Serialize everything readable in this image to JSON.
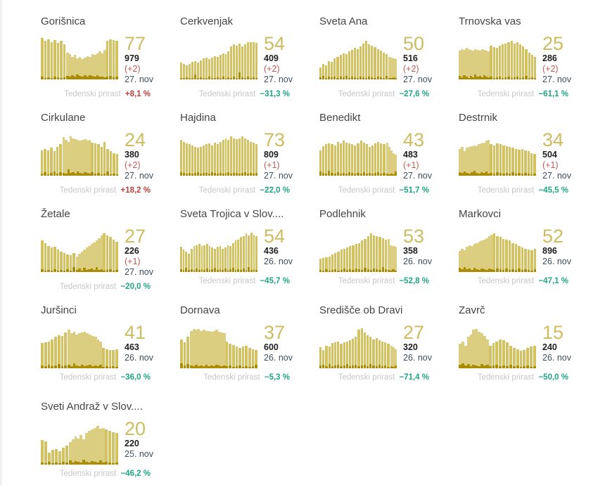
{
  "growth_label": "Tedenski prirast",
  "colors": {
    "bar": "#d3c262",
    "bar_light": "#dbce80",
    "bar_dark": "#ab8d03",
    "value": "#cebc62",
    "title": "#454545",
    "total": "#1e1e1e",
    "delta": "#bf5b51",
    "date": "#3f4e5c",
    "growth_label": "#c7c7c7",
    "growth_positive": "#b8403c",
    "growth_negative": "#20a584"
  },
  "chart_data": {
    "type": "bar",
    "description": "Grid of 17 municipality cards, each with a sparkline bar chart of daily active COVID-19 cases (light bars) and daily new confirmed cases (dark bottom segments). Headline number = current active cases; below it total confirmed, new cases today, data date, and weekly growth percentage.",
    "series": [
      {
        "name": "Gorišnica",
        "active": 77,
        "confirmed_total": 979,
        "new_cases": 2,
        "date": "27. nov",
        "weekly_growth_pct": 8.1
      },
      {
        "name": "Cerkvenjak",
        "active": 54,
        "confirmed_total": 409,
        "new_cases": 2,
        "date": "27. nov",
        "weekly_growth_pct": -31.3
      },
      {
        "name": "Sveta Ana",
        "active": 50,
        "confirmed_total": 516,
        "new_cases": 2,
        "date": "27. nov",
        "weekly_growth_pct": -27.6
      },
      {
        "name": "Trnovska vas",
        "active": 25,
        "confirmed_total": 286,
        "new_cases": 2,
        "date": "27. nov",
        "weekly_growth_pct": -61.1
      },
      {
        "name": "Cirkulane",
        "active": 24,
        "confirmed_total": 380,
        "new_cases": 2,
        "date": "27. nov",
        "weekly_growth_pct": 18.2
      },
      {
        "name": "Hajdina",
        "active": 73,
        "confirmed_total": 809,
        "new_cases": 1,
        "date": "27. nov",
        "weekly_growth_pct": -22.0
      },
      {
        "name": "Benedikt",
        "active": 43,
        "confirmed_total": 483,
        "new_cases": 1,
        "date": "27. nov",
        "weekly_growth_pct": -51.7
      },
      {
        "name": "Destrnik",
        "active": 34,
        "confirmed_total": 504,
        "new_cases": 1,
        "date": "27. nov",
        "weekly_growth_pct": -45.5
      },
      {
        "name": "Žetale",
        "active": 27,
        "confirmed_total": 226,
        "new_cases": 1,
        "date": "27. nov",
        "weekly_growth_pct": -20.0
      },
      {
        "name": "Sveta Trojica v Slov....",
        "active": 54,
        "confirmed_total": 436,
        "new_cases": null,
        "date": "26. nov",
        "weekly_growth_pct": -45.7
      },
      {
        "name": "Podlehnik",
        "active": 53,
        "confirmed_total": 358,
        "new_cases": null,
        "date": "26. nov",
        "weekly_growth_pct": -52.8
      },
      {
        "name": "Markovci",
        "active": 52,
        "confirmed_total": 896,
        "new_cases": null,
        "date": "26. nov",
        "weekly_growth_pct": -47.1
      },
      {
        "name": "Juršinci",
        "active": 41,
        "confirmed_total": 463,
        "new_cases": null,
        "date": "26. nov",
        "weekly_growth_pct": -36.0
      },
      {
        "name": "Dornava",
        "active": 37,
        "confirmed_total": 600,
        "new_cases": null,
        "date": "26. nov",
        "weekly_growth_pct": -5.3
      },
      {
        "name": "Središče ob Dravi",
        "active": 27,
        "confirmed_total": 320,
        "new_cases": null,
        "date": "26. nov",
        "weekly_growth_pct": -71.4
      },
      {
        "name": "Zavrč",
        "active": 15,
        "confirmed_total": 240,
        "new_cases": null,
        "date": "26. nov",
        "weekly_growth_pct": -50.0
      },
      {
        "name": "Sveti Andraž v Slov....",
        "active": 20,
        "confirmed_total": 220,
        "new_cases": null,
        "date": "25. nov",
        "weekly_growth_pct": -46.2
      }
    ]
  },
  "cards": [
    {
      "name": "Gorišnica",
      "value": "77",
      "total": "979",
      "delta": "(+2)",
      "date": "27. nov",
      "growth": "+8,1 %",
      "growth_dir": "positive",
      "merged": [
        8,
        23
      ],
      "bars": [
        95,
        88,
        92,
        85,
        90,
        84,
        88,
        80,
        62,
        58,
        52,
        56,
        48,
        52,
        46,
        50,
        54,
        52,
        58,
        56,
        60,
        64,
        60,
        68,
        88,
        92,
        90,
        88
      ],
      "dark": [
        6,
        4,
        5,
        4,
        6,
        5,
        4,
        5,
        8,
        6,
        10,
        7,
        12,
        8,
        6,
        9,
        7,
        10,
        8,
        6,
        9,
        7,
        6,
        5,
        6,
        8,
        5,
        6
      ]
    },
    {
      "name": "Cerkvenjak",
      "value": "54",
      "total": "409",
      "delta": "(+2)",
      "date": "27. nov",
      "growth": "−31,3 %",
      "growth_dir": "negative",
      "merged": null,
      "bars": [
        38,
        35,
        33,
        36,
        40,
        42,
        38,
        44,
        48,
        50,
        46,
        50,
        54,
        52,
        56,
        60,
        58,
        64,
        76,
        80,
        78,
        82,
        76,
        80,
        85,
        85,
        85,
        84
      ],
      "dark": [
        4,
        3,
        5,
        3,
        4,
        12,
        4,
        5,
        3,
        4,
        6,
        4,
        3,
        5,
        4,
        6,
        4,
        5,
        3,
        6,
        4,
        16,
        5,
        4,
        6,
        3,
        5,
        4
      ]
    },
    {
      "name": "Sveta Ana",
      "value": "50",
      "total": "516",
      "delta": "(+2)",
      "date": "27. nov",
      "growth": "−27,6 %",
      "growth_dir": "negative",
      "merged": [
        24,
        27
      ],
      "bars": [
        28,
        35,
        32,
        42,
        40,
        48,
        52,
        56,
        60,
        58,
        64,
        68,
        72,
        70,
        76,
        82,
        88,
        80,
        78,
        74,
        70,
        66,
        62,
        58,
        52,
        50,
        48,
        46
      ],
      "dark": [
        5,
        8,
        4,
        6,
        5,
        7,
        4,
        6,
        5,
        8,
        4,
        6,
        5,
        4,
        6,
        5,
        4,
        6,
        5,
        4,
        6,
        5,
        4,
        8,
        4,
        3,
        5,
        4
      ]
    },
    {
      "name": "Trnovska vas",
      "value": "25",
      "total": "286",
      "delta": "(+2)",
      "date": "27. nov",
      "growth": "−61,1 %",
      "growth_dir": "negative",
      "merged": [
        0,
        13
      ],
      "bars": [
        66,
        70,
        68,
        72,
        70,
        68,
        66,
        70,
        68,
        66,
        70,
        68,
        66,
        64,
        78,
        74,
        72,
        78,
        80,
        82,
        85,
        88,
        82,
        85,
        80,
        76,
        70,
        62,
        56,
        52
      ],
      "dark": [
        8,
        5,
        10,
        6,
        4,
        8,
        5,
        12,
        6,
        8,
        5,
        10,
        6,
        5,
        6,
        4,
        5,
        6,
        4,
        5,
        6,
        4,
        5,
        6,
        4,
        5,
        8,
        4,
        5,
        4
      ]
    },
    {
      "name": "Cirkulane",
      "value": "24",
      "total": "380",
      "delta": "(+2)",
      "date": "27. nov",
      "growth": "+18,2 %",
      "growth_dir": "positive",
      "merged": [
        7,
        18
      ],
      "bars": [
        58,
        62,
        58,
        64,
        56,
        66,
        72,
        88,
        82,
        78,
        90,
        86,
        84,
        82,
        80,
        82,
        84,
        80,
        82,
        76,
        74,
        72,
        66,
        78,
        62,
        56,
        52,
        50
      ],
      "dark": [
        5,
        8,
        4,
        6,
        10,
        5,
        8,
        6,
        5,
        14,
        6,
        8,
        5,
        10,
        6,
        5,
        8,
        6,
        5,
        8,
        5,
        6,
        4,
        5,
        10,
        4,
        5,
        4
      ]
    },
    {
      "name": "Hajdina",
      "value": "73",
      "total": "809",
      "delta": "(+1)",
      "date": "27. nov",
      "growth": "−22,0 %",
      "growth_dir": "negative",
      "merged": null,
      "bars": [
        82,
        78,
        74,
        72,
        70,
        66,
        64,
        66,
        70,
        72,
        74,
        70,
        76,
        72,
        78,
        82,
        86,
        82,
        90,
        86,
        84,
        86,
        90,
        86,
        82,
        78,
        76,
        72
      ],
      "dark": [
        8,
        6,
        5,
        7,
        5,
        6,
        8,
        5,
        6,
        7,
        5,
        8,
        6,
        5,
        7,
        5,
        6,
        8,
        5,
        6,
        7,
        5,
        6,
        8,
        5,
        6,
        5,
        6
      ]
    },
    {
      "name": "Benedikt",
      "value": "43",
      "total": "483",
      "delta": "(+1)",
      "date": "27. nov",
      "growth": "−51,7 %",
      "growth_dir": "negative",
      "merged": [
        23,
        27
      ],
      "bars": [
        58,
        68,
        72,
        74,
        72,
        70,
        78,
        74,
        80,
        76,
        74,
        72,
        70,
        74,
        80,
        76,
        72,
        66,
        70,
        74,
        78,
        74,
        72,
        76,
        66,
        58,
        52,
        48
      ],
      "dark": [
        10,
        6,
        5,
        12,
        6,
        5,
        8,
        5,
        6,
        5,
        8,
        6,
        5,
        6,
        5,
        8,
        5,
        6,
        5,
        6,
        8,
        5,
        6,
        5,
        4,
        5,
        4,
        10
      ]
    },
    {
      "name": "Destrnik",
      "value": "34",
      "total": "504",
      "delta": "(+1)",
      "date": "27. nov",
      "growth": "−45,5 %",
      "growth_dir": "negative",
      "merged": [
        0,
        12
      ],
      "bars": [
        62,
        66,
        56,
        64,
        66,
        68,
        70,
        68,
        72,
        74,
        76,
        80,
        82,
        72,
        70,
        74,
        72,
        70,
        68,
        66,
        64,
        62,
        60,
        62,
        58,
        56,
        52,
        50
      ],
      "dark": [
        8,
        6,
        10,
        6,
        5,
        8,
        12,
        6,
        5,
        8,
        6,
        10,
        5,
        6,
        5,
        8,
        6,
        5,
        6,
        5,
        8,
        5,
        6,
        5,
        6,
        5,
        4,
        5
      ]
    },
    {
      "name": "Žetale",
      "value": "27",
      "total": "226",
      "delta": "(+1)",
      "date": "27. nov",
      "growth": "−20,0 %",
      "growth_dir": "negative",
      "merged": [
        11,
        21
      ],
      "bars": [
        72,
        66,
        60,
        56,
        58,
        52,
        46,
        44,
        40,
        38,
        44,
        36,
        42,
        46,
        52,
        56,
        60,
        64,
        68,
        72,
        78,
        84,
        88,
        84,
        80,
        74,
        70
      ],
      "dark": [
        6,
        4,
        5,
        4,
        6,
        4,
        5,
        4,
        6,
        4,
        12,
        5,
        8,
        4,
        10,
        5,
        6,
        8,
        5,
        12,
        5,
        6,
        4,
        5,
        6,
        4,
        5
      ]
    },
    {
      "name": "Sveta Trojica v Slov....",
      "value": "54",
      "total": "436",
      "delta": null,
      "date": "26. nov",
      "growth": "−45,7 %",
      "growth_dir": "negative",
      "merged": null,
      "bars": [
        58,
        52,
        46,
        42,
        54,
        60,
        62,
        64,
        60,
        62,
        64,
        60,
        56,
        54,
        58,
        60,
        54,
        56,
        62,
        60,
        66,
        72,
        74,
        80,
        82,
        88,
        84,
        90,
        86,
        82
      ],
      "dark": [
        6,
        5,
        10,
        5,
        6,
        5,
        8,
        5,
        6,
        5,
        8,
        5,
        6,
        10,
        5,
        6,
        5,
        8,
        5,
        6,
        10,
        5,
        6,
        5,
        8,
        5,
        12,
        5,
        6,
        5
      ]
    },
    {
      "name": "Podlehnik",
      "value": "53",
      "total": "358",
      "delta": null,
      "date": "26. nov",
      "growth": "−52,8 %",
      "growth_dir": "negative",
      "merged": [
        23,
        26
      ],
      "bars": [
        30,
        32,
        34,
        36,
        40,
        44,
        46,
        52,
        54,
        56,
        60,
        62,
        64,
        66,
        72,
        76,
        82,
        88,
        84,
        82,
        80,
        78,
        74,
        76,
        62,
        60,
        58
      ],
      "dark": [
        5,
        4,
        6,
        4,
        5,
        6,
        4,
        5,
        8,
        5,
        6,
        5,
        8,
        6,
        5,
        10,
        6,
        5,
        8,
        6,
        5,
        12,
        6,
        5,
        4,
        6,
        4
      ]
    },
    {
      "name": "Markovci",
      "value": "52",
      "total": "896",
      "delta": null,
      "date": "26. nov",
      "growth": "−47,1 %",
      "growth_dir": "negative",
      "merged": [
        0,
        13
      ],
      "bars": [
        48,
        54,
        50,
        58,
        62,
        60,
        64,
        66,
        70,
        72,
        74,
        78,
        82,
        85,
        88,
        82,
        80,
        76,
        74,
        72,
        66,
        64,
        60,
        56,
        54,
        52,
        50,
        54
      ],
      "dark": [
        10,
        6,
        12,
        6,
        8,
        5,
        10,
        6,
        5,
        8,
        6,
        5,
        8,
        6,
        5,
        8,
        6,
        5,
        8,
        5,
        6,
        5,
        8,
        5,
        6,
        5,
        4,
        6
      ]
    },
    {
      "name": "Juršinci",
      "value": "41",
      "total": "463",
      "delta": null,
      "date": "26. nov",
      "growth": "−36,0 %",
      "growth_dir": "negative",
      "merged": [
        8,
        20
      ],
      "bars": [
        58,
        60,
        62,
        66,
        72,
        76,
        74,
        82,
        88,
        80,
        84,
        78,
        80,
        82,
        84,
        80,
        78,
        74,
        72,
        66,
        62,
        46,
        44,
        42,
        42,
        44
      ],
      "dark": [
        6,
        5,
        8,
        5,
        6,
        10,
        5,
        6,
        8,
        5,
        12,
        6,
        5,
        8,
        5,
        6,
        8,
        5,
        6,
        5,
        8,
        4,
        5,
        4,
        5,
        4
      ]
    },
    {
      "name": "Dornava",
      "value": "37",
      "total": "600",
      "delta": null,
      "date": "26. nov",
      "growth": "−5,3 %",
      "growth_dir": "negative",
      "merged": [
        3,
        16
      ],
      "bars": [
        66,
        60,
        72,
        86,
        90,
        88,
        90,
        86,
        88,
        86,
        86,
        84,
        86,
        88,
        84,
        82,
        80,
        62,
        56,
        54,
        50,
        46,
        50,
        52,
        46,
        44,
        42
      ],
      "dark": [
        12,
        6,
        10,
        6,
        5,
        8,
        5,
        6,
        5,
        8,
        5,
        6,
        5,
        8,
        6,
        5,
        6,
        5,
        6,
        4,
        5,
        6,
        4,
        5,
        4,
        5,
        8
      ]
    },
    {
      "name": "Središče ob Dravi",
      "value": "27",
      "total": "320",
      "delta": null,
      "date": "26. nov",
      "growth": "−71,4 %",
      "growth_dir": "negative",
      "merged": [
        24,
        26
      ],
      "bars": [
        48,
        42,
        52,
        50,
        58,
        60,
        62,
        56,
        60,
        62,
        64,
        68,
        72,
        88,
        92,
        82,
        76,
        72,
        66,
        70,
        64,
        62,
        60,
        56,
        52,
        48,
        44
      ],
      "dark": [
        6,
        8,
        5,
        10,
        5,
        6,
        8,
        5,
        6,
        10,
        5,
        6,
        8,
        5,
        6,
        8,
        5,
        10,
        6,
        5,
        8,
        5,
        6,
        4,
        5,
        4,
        6
      ]
    },
    {
      "name": "Zavrč",
      "value": "15",
      "total": "240",
      "delta": null,
      "date": "26. nov",
      "growth": "−50,0 %",
      "growth_dir": "negative",
      "merged": [
        0,
        10
      ],
      "bars": [
        56,
        62,
        52,
        72,
        78,
        88,
        90,
        84,
        80,
        74,
        66,
        52,
        58,
        62,
        66,
        64,
        60,
        52,
        46,
        44,
        40,
        42,
        46,
        50,
        52
      ],
      "dark": [
        8,
        12,
        6,
        10,
        5,
        8,
        6,
        5,
        10,
        6,
        8,
        5,
        6,
        8,
        5,
        6,
        5,
        8,
        5,
        6,
        4,
        5,
        6,
        4,
        5
      ]
    },
    {
      "name": "Sveti Andraž v Slov....",
      "value": "20",
      "total": "220",
      "delta": null,
      "date": "25. nov",
      "growth": "−46,2 %",
      "growth_dir": "negative",
      "merged": [
        8,
        20
      ],
      "bars": [
        56,
        54,
        28,
        34,
        36,
        30,
        38,
        44,
        52,
        58,
        64,
        60,
        68,
        58,
        72,
        78,
        80,
        84,
        88,
        82,
        84,
        80,
        78,
        74,
        72
      ],
      "dark": [
        5,
        4,
        6,
        4,
        5,
        4,
        6,
        5,
        10,
        5,
        8,
        6,
        5,
        12,
        6,
        5,
        8,
        6,
        5,
        10,
        5,
        6,
        5,
        4,
        5
      ]
    }
  ]
}
